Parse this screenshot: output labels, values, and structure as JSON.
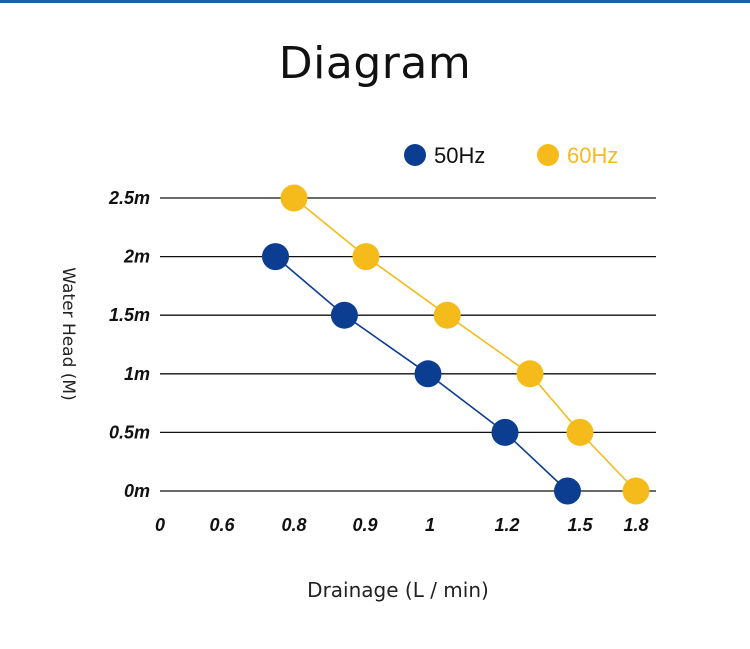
{
  "chart_data": {
    "type": "line",
    "title": "Diagram",
    "xlabel": "Drainage (L / min)",
    "ylabel": "Water Head (M)",
    "x_tick_labels": [
      "0",
      "0.6",
      "0.8",
      "0.9",
      "1",
      "1.2",
      "1.5",
      "1.8"
    ],
    "y_tick_labels": [
      "0m",
      "0.5m",
      "1m",
      "1.5m",
      "2m",
      "2.5m"
    ],
    "y_ticks": [
      0,
      0.5,
      1,
      1.5,
      2,
      2.5
    ],
    "grid": true,
    "legend_position": "top-right",
    "series": [
      {
        "name": "50Hz",
        "color": "#0b3d91",
        "points": [
          {
            "x": 0.75,
            "y": 2
          },
          {
            "x": 0.87,
            "y": 1.5
          },
          {
            "x": 1.0,
            "y": 1
          },
          {
            "x": 1.2,
            "y": 0.5
          },
          {
            "x": 1.45,
            "y": 0
          }
        ]
      },
      {
        "name": "60Hz",
        "color": "#f4bb1a",
        "points": [
          {
            "x": 0.8,
            "y": 2.5
          },
          {
            "x": 0.9,
            "y": 2
          },
          {
            "x": 1.05,
            "y": 1.5
          },
          {
            "x": 1.3,
            "y": 1
          },
          {
            "x": 1.5,
            "y": 0.5
          },
          {
            "x": 1.8,
            "y": 0
          }
        ]
      }
    ]
  }
}
